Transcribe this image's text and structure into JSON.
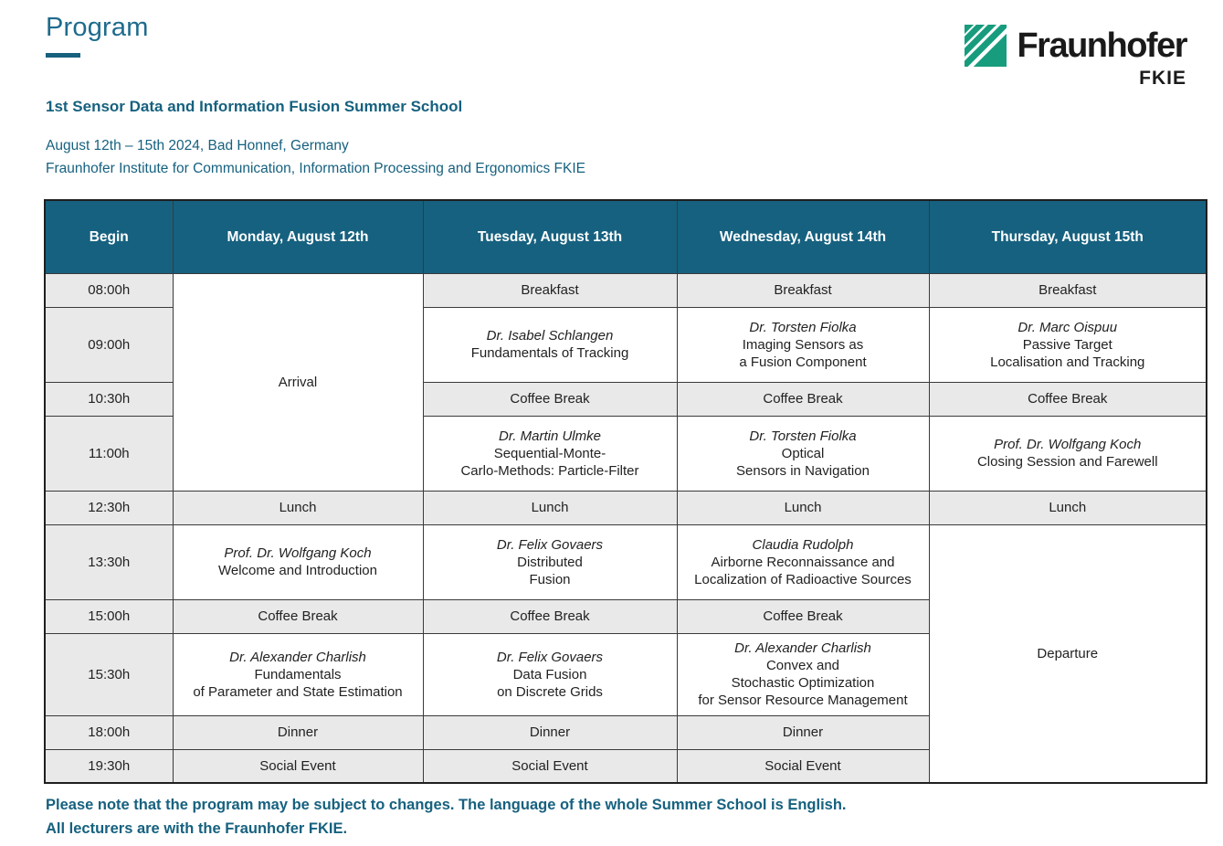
{
  "colors": {
    "accent_teal": "#16617F",
    "title_teal": "#1E6B8D",
    "logo_green": "#179C7D",
    "cell_gray": "#E9E9E9",
    "border_dark": "#3A3A3A",
    "text_dark": "#222222"
  },
  "header": {
    "title": "Program",
    "logo": {
      "brand": "Fraunhofer",
      "unit": "FKIE"
    },
    "event_title": "1st Sensor Data and Information Fusion Summer School",
    "date_location": "August 12th – 15th 2024, Bad Honnef, Germany",
    "institute": "Fraunhofer Institute for Communication, Information Processing and Ergonomics FKIE"
  },
  "schedule": {
    "columns": [
      "Begin",
      "Monday, August 12th",
      "Tuesday, August 13th",
      "Wednesday, August 14th",
      "Thursday, August 15th"
    ],
    "rows": [
      {
        "time": "08:00h",
        "cells": [
          {
            "lines": [
              "Arrival"
            ],
            "type": "plain",
            "rowspan": 4
          },
          {
            "lines": [
              "Breakfast"
            ],
            "type": "break"
          },
          {
            "lines": [
              "Breakfast"
            ],
            "type": "break"
          },
          {
            "lines": [
              "Breakfast"
            ],
            "type": "break"
          }
        ]
      },
      {
        "time": "09:00h",
        "cells": [
          {
            "lines": [
              "Dr. Isabel Schlangen",
              "Fundamentals of Tracking"
            ],
            "type": "talk"
          },
          {
            "lines": [
              "Dr. Torsten Fiolka",
              "Imaging Sensors as",
              "a Fusion Component"
            ],
            "type": "talk"
          },
          {
            "lines": [
              "Dr. Marc Oispuu",
              "Passive Target",
              "Localisation and Tracking"
            ],
            "type": "talk"
          }
        ]
      },
      {
        "time": "10:30h",
        "cells": [
          {
            "lines": [
              "Coffee Break"
            ],
            "type": "break"
          },
          {
            "lines": [
              "Coffee Break"
            ],
            "type": "break"
          },
          {
            "lines": [
              "Coffee Break"
            ],
            "type": "break"
          }
        ]
      },
      {
        "time": "11:00h",
        "cells": [
          {
            "lines": [
              "Dr. Martin Ulmke",
              "Sequential-Monte-",
              "Carlo-Methods: Particle-Filter"
            ],
            "type": "talk"
          },
          {
            "lines": [
              "Dr. Torsten Fiolka",
              "Optical",
              "Sensors in Navigation"
            ],
            "type": "talk"
          },
          {
            "lines": [
              "Prof. Dr. Wolfgang Koch",
              "Closing Session and Farewell"
            ],
            "type": "talk"
          }
        ]
      },
      {
        "time": "12:30h",
        "cells": [
          {
            "lines": [
              "Lunch"
            ],
            "type": "break"
          },
          {
            "lines": [
              "Lunch"
            ],
            "type": "break"
          },
          {
            "lines": [
              "Lunch"
            ],
            "type": "break"
          },
          {
            "lines": [
              "Lunch"
            ],
            "type": "break"
          }
        ]
      },
      {
        "time": "13:30h",
        "cells": [
          {
            "lines": [
              "Prof. Dr. Wolfgang Koch",
              "Welcome and Introduction"
            ],
            "type": "talk"
          },
          {
            "lines": [
              "Dr. Felix Govaers",
              "Distributed",
              "Fusion"
            ],
            "type": "talk"
          },
          {
            "lines": [
              "Claudia Rudolph",
              "Airborne Reconnaissance and",
              "Localization of Radioactive Sources"
            ],
            "type": "talk"
          },
          {
            "lines": [
              "Departure"
            ],
            "type": "plain",
            "rowspan": 5
          }
        ]
      },
      {
        "time": "15:00h",
        "cells": [
          {
            "lines": [
              "Coffee Break"
            ],
            "type": "break"
          },
          {
            "lines": [
              "Coffee Break"
            ],
            "type": "break"
          },
          {
            "lines": [
              "Coffee Break"
            ],
            "type": "break"
          }
        ]
      },
      {
        "time": "15:30h",
        "cells": [
          {
            "lines": [
              "Dr. Alexander Charlish",
              "Fundamentals",
              "of Parameter and State Estimation"
            ],
            "type": "talk"
          },
          {
            "lines": [
              "Dr. Felix Govaers",
              "Data Fusion",
              "on Discrete Grids"
            ],
            "type": "talk"
          },
          {
            "lines": [
              "Dr. Alexander Charlish",
              "Convex and",
              "Stochastic Optimization",
              "for Sensor Resource Management"
            ],
            "type": "talk"
          }
        ]
      },
      {
        "time": "18:00h",
        "cells": [
          {
            "lines": [
              "Dinner"
            ],
            "type": "break"
          },
          {
            "lines": [
              "Dinner"
            ],
            "type": "break"
          },
          {
            "lines": [
              "Dinner"
            ],
            "type": "break"
          }
        ]
      },
      {
        "time": "19:30h",
        "cells": [
          {
            "lines": [
              "Social Event"
            ],
            "type": "break"
          },
          {
            "lines": [
              "Social Event"
            ],
            "type": "break"
          },
          {
            "lines": [
              "Social Event"
            ],
            "type": "break"
          }
        ]
      }
    ]
  },
  "footer": {
    "line1": "Please note that the program may be subject to changes. The language of the whole Summer School is English.",
    "line2": "All lecturers are with the Fraunhofer FKIE."
  }
}
